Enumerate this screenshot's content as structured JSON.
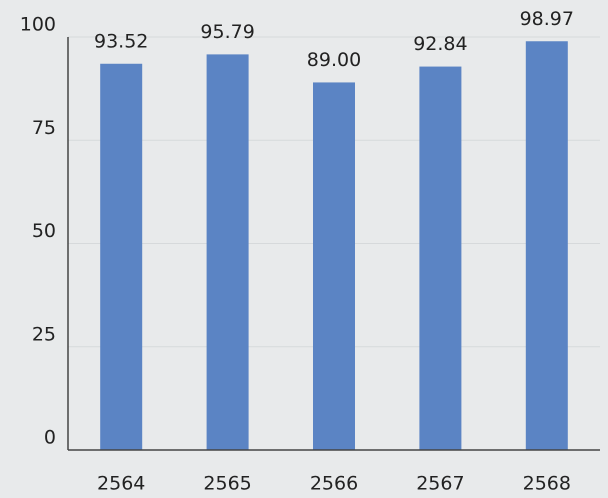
{
  "chart_data": {
    "type": "bar",
    "categories": [
      "2564",
      "2565",
      "2566",
      "2567",
      "2568"
    ],
    "values": [
      93.52,
      95.79,
      89,
      92.84,
      98.97
    ],
    "value_labels": [
      "93.52",
      "95.79",
      "89.00",
      "92.84",
      "98.97"
    ],
    "color": "#5b84c4",
    "ylim": [
      0,
      100
    ],
    "yticks": [
      0,
      25,
      50,
      75,
      100
    ],
    "grid": true
  }
}
